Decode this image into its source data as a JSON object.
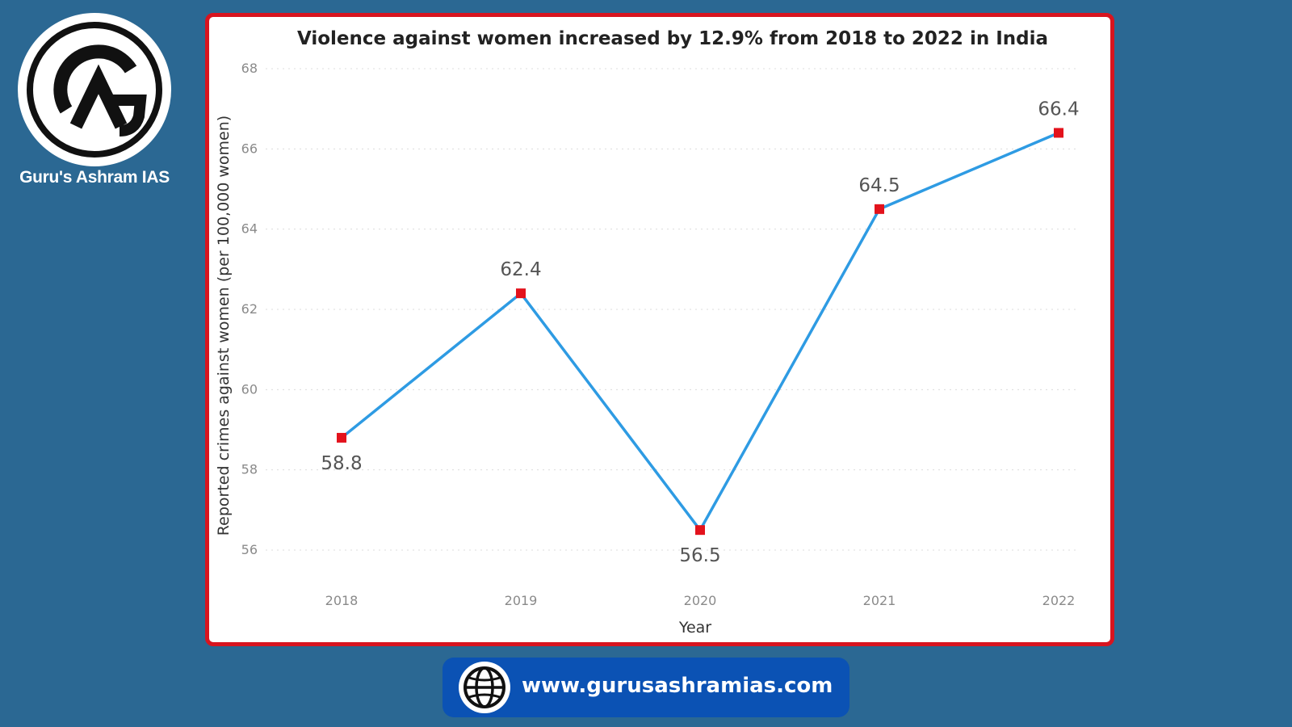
{
  "brand": {
    "name": "Guru's Ashram IAS",
    "logo_text": "AG"
  },
  "footer": {
    "url": "www.gurusashramias.com",
    "icon": "globe-icon"
  },
  "colors": {
    "background": "#2b6893",
    "card_border": "#d8141f",
    "line": "#2e9be3",
    "marker": "#e3121c",
    "pill": "#0b52b4"
  },
  "chart_data": {
    "type": "line",
    "title": "Violence against women increased by 12.9% from 2018 to 2022 in India",
    "xlabel": "Year",
    "ylabel": "Reported crimes against women (per 100,000 women)",
    "categories": [
      "2018",
      "2019",
      "2020",
      "2021",
      "2022"
    ],
    "values": [
      58.8,
      62.4,
      56.5,
      64.5,
      66.4
    ],
    "data_labels": [
      "58.8",
      "62.4",
      "56.5",
      "64.5",
      "66.4"
    ],
    "label_positions": [
      "below",
      "above",
      "below",
      "above",
      "above"
    ],
    "ylim": [
      56,
      68
    ],
    "yticks": [
      56,
      58,
      60,
      62,
      64,
      66,
      68
    ],
    "grid": true,
    "legend": "none"
  }
}
